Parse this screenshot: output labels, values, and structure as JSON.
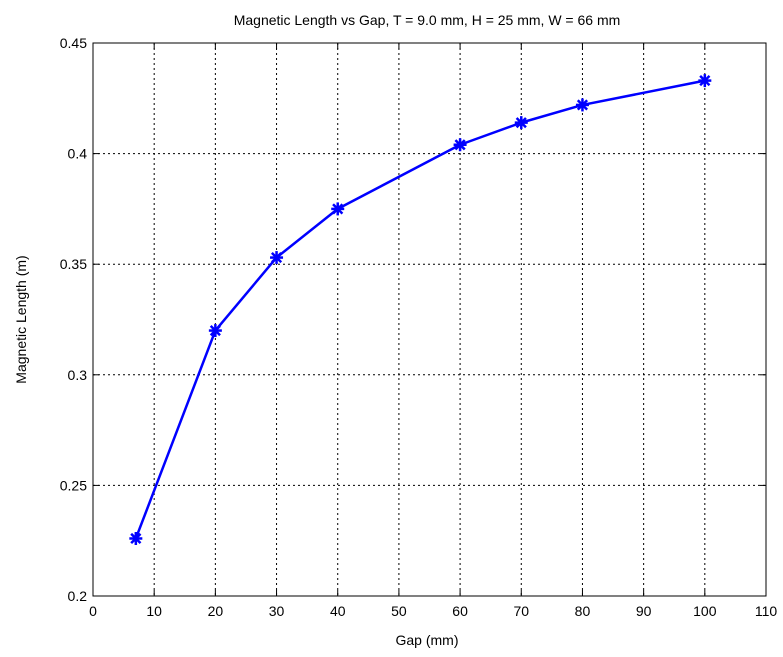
{
  "chart_data": {
    "type": "line",
    "title": "Magnetic Length vs Gap, T = 9.0 mm, H = 25 mm, W = 66 mm",
    "xlabel": "Gap (mm)",
    "ylabel": "Magnetic Length (m)",
    "xlim": [
      0,
      110
    ],
    "ylim": [
      0.2,
      0.45
    ],
    "xticks": [
      0,
      10,
      20,
      30,
      40,
      50,
      60,
      70,
      80,
      90,
      100,
      110
    ],
    "yticks": [
      0.2,
      0.25,
      0.3,
      0.35,
      0.4,
      0.45
    ],
    "xtick_labels": [
      "0",
      "10",
      "20",
      "30",
      "40",
      "50",
      "60",
      "70",
      "80",
      "90",
      "100",
      "110"
    ],
    "ytick_labels": [
      "0.2",
      "0.25",
      "0.3",
      "0.35",
      "0.4",
      "0.45"
    ],
    "grid": true,
    "series": [
      {
        "color": "#0000ff",
        "marker": "asterisk",
        "x": [
          7,
          20,
          30,
          40,
          60,
          70,
          80,
          100
        ],
        "y": [
          0.226,
          0.32,
          0.353,
          0.375,
          0.404,
          0.414,
          0.422,
          0.433
        ]
      }
    ]
  }
}
